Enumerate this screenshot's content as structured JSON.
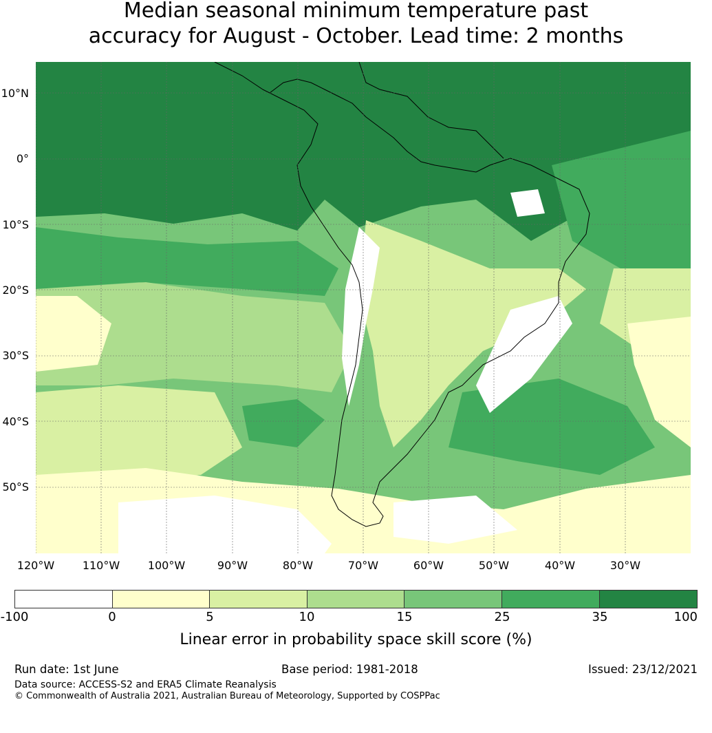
{
  "title": {
    "line1": "Median seasonal minimum temperature past",
    "line2": "accuracy for August - October. Lead time: 2 months"
  },
  "map": {
    "latitude_labels": [
      "10°N",
      "0°",
      "10°S",
      "20°S",
      "30°S",
      "40°S",
      "50°S"
    ],
    "longitude_labels": [
      "120°W",
      "110°W",
      "100°W",
      "90°W",
      "80°W",
      "70°W",
      "60°W",
      "50°W",
      "40°W",
      "30°W"
    ]
  },
  "colorbar": {
    "colors": [
      "#ffffff",
      "#ffffcc",
      "#d9f0a3",
      "#addd8e",
      "#78c679",
      "#41ab5d",
      "#238443"
    ],
    "ticks": [
      "-100",
      "0",
      "5",
      "10",
      "15",
      "25",
      "35",
      "100"
    ],
    "label": "Linear error in probability space skill score (%)"
  },
  "footer": {
    "run_date": "Run date: 1st June",
    "base_period": "Base period: 1981-2018",
    "issued": "Issued: 23/12/2021",
    "data_source": "Data source: ACCESS-S2 and ERA5 Climate Reanalysis",
    "copyright": "© Commonwealth of Australia 2021, Australian Bureau of Meteorology, Supported by COSPPac"
  }
}
